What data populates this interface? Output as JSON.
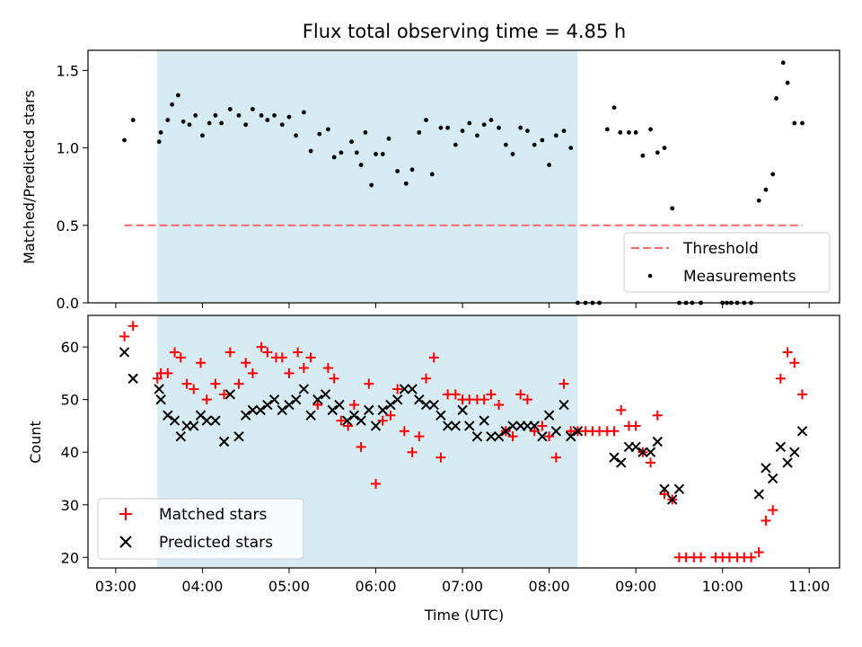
{
  "title": "Flux total observing time = 4.85 h",
  "colors": {
    "shade": "#add8e6",
    "threshold": "#ff6666",
    "matched": "#ff0000",
    "predicted": "#000000",
    "measurements": "#000000"
  },
  "chart_data": [
    {
      "type": "scatter",
      "ylabel": "Matched/Predicted stars",
      "xlim": [
        2.68,
        11.35
      ],
      "ylim": [
        0.0,
        1.63
      ],
      "y_ticks": [
        0.0,
        0.5,
        1.0,
        1.5
      ],
      "y_tick_labels": [
        "0.0",
        "0.5",
        "1.0",
        "1.5"
      ],
      "grid": false,
      "shaded_span": [
        3.48,
        8.33
      ],
      "legend": {
        "placement": "lower right",
        "entries": [
          "Threshold",
          "Measurements"
        ]
      },
      "series": [
        {
          "name": "Threshold",
          "kind": "dashed-line",
          "x": [
            3.1,
            10.92
          ],
          "y": [
            0.5,
            0.5
          ]
        },
        {
          "name": "Measurements",
          "kind": "dot",
          "x": [
            3.1,
            3.2,
            3.5,
            3.52,
            3.6,
            3.65,
            3.72,
            3.78,
            3.85,
            3.92,
            4.0,
            4.08,
            4.15,
            4.22,
            4.32,
            4.42,
            4.5,
            4.58,
            4.68,
            4.75,
            4.83,
            4.92,
            5.0,
            5.08,
            5.17,
            5.25,
            5.35,
            5.45,
            5.52,
            5.6,
            5.72,
            5.78,
            5.83,
            5.88,
            5.95,
            6.0,
            6.08,
            6.15,
            6.25,
            6.35,
            6.42,
            6.5,
            6.58,
            6.65,
            6.75,
            6.83,
            6.92,
            7.0,
            7.08,
            7.17,
            7.25,
            7.33,
            7.42,
            7.5,
            7.58,
            7.67,
            7.75,
            7.83,
            7.92,
            8.0,
            8.08,
            8.17,
            8.25,
            8.33,
            8.42,
            8.5,
            8.58,
            8.67,
            8.75,
            8.82,
            8.92,
            9.0,
            9.08,
            9.17,
            9.25,
            9.33,
            9.42,
            9.5,
            9.58,
            9.65,
            9.75,
            10.0,
            10.05,
            10.1,
            10.17,
            10.25,
            10.33,
            10.42,
            10.5,
            10.58,
            10.62,
            10.7,
            10.75,
            10.83,
            10.92
          ],
          "y": [
            1.05,
            1.18,
            1.04,
            1.1,
            1.18,
            1.28,
            1.34,
            1.17,
            1.15,
            1.21,
            1.08,
            1.16,
            1.21,
            1.16,
            1.25,
            1.21,
            1.15,
            1.25,
            1.21,
            1.18,
            1.21,
            1.15,
            1.2,
            1.08,
            1.23,
            0.98,
            1.09,
            1.12,
            0.94,
            0.97,
            1.04,
            0.97,
            0.89,
            1.1,
            0.76,
            0.96,
            0.96,
            1.06,
            0.85,
            0.77,
            0.86,
            1.1,
            1.18,
            0.83,
            1.13,
            1.13,
            1.02,
            1.11,
            1.16,
            1.08,
            1.15,
            1.18,
            1.13,
            1.02,
            0.96,
            1.13,
            1.11,
            1.02,
            1.05,
            0.89,
            1.08,
            1.11,
            1.0,
            0.0,
            0.0,
            0.0,
            0.0,
            1.12,
            1.26,
            1.1,
            1.1,
            1.1,
            0.95,
            1.12,
            0.97,
            1.0,
            0.61,
            0.0,
            0.0,
            0.0,
            0.0,
            0.0,
            0.0,
            0.0,
            0.0,
            0.0,
            0.0,
            0.66,
            0.73,
            0.83,
            1.32,
            1.55,
            1.42,
            1.16,
            1.16
          ]
        }
      ]
    },
    {
      "type": "scatter",
      "ylabel": "Count",
      "xlabel": "Time (UTC)",
      "xlim": [
        2.68,
        11.35
      ],
      "ylim": [
        18,
        66
      ],
      "y_ticks": [
        20,
        30,
        40,
        50,
        60
      ],
      "y_tick_labels": [
        "20",
        "30",
        "40",
        "50",
        "60"
      ],
      "x_ticks": [
        3,
        4,
        5,
        6,
        7,
        8,
        9,
        10,
        11
      ],
      "x_tick_labels": [
        "03:00",
        "04:00",
        "05:00",
        "06:00",
        "07:00",
        "08:00",
        "09:00",
        "10:00",
        "11:00"
      ],
      "grid": false,
      "shaded_span": [
        3.48,
        8.33
      ],
      "legend": {
        "placement": "lower left",
        "entries": [
          "Matched stars",
          "Predicted stars"
        ]
      },
      "series": [
        {
          "name": "Matched stars",
          "kind": "plus",
          "x": [
            3.1,
            3.2,
            3.48,
            3.52,
            3.6,
            3.68,
            3.75,
            3.82,
            3.9,
            3.98,
            4.05,
            4.15,
            4.25,
            4.32,
            4.42,
            4.5,
            4.58,
            4.68,
            4.75,
            4.85,
            4.92,
            5.0,
            5.1,
            5.17,
            5.25,
            5.33,
            5.45,
            5.52,
            5.6,
            5.68,
            5.75,
            5.83,
            5.92,
            6.0,
            6.08,
            6.17,
            6.25,
            6.33,
            6.42,
            6.5,
            6.58,
            6.67,
            6.75,
            6.83,
            6.92,
            7.0,
            7.08,
            7.17,
            7.25,
            7.33,
            7.42,
            7.5,
            7.58,
            7.67,
            7.75,
            7.83,
            7.92,
            8.0,
            8.08,
            8.17,
            8.25,
            8.33,
            8.42,
            8.5,
            8.58,
            8.67,
            8.75,
            8.83,
            8.92,
            9.0,
            9.08,
            9.17,
            9.25,
            9.33,
            9.42,
            9.5,
            9.58,
            9.67,
            9.75,
            9.92,
            10.0,
            10.08,
            10.17,
            10.25,
            10.33,
            10.42,
            10.5,
            10.58,
            10.67,
            10.75,
            10.83,
            10.92
          ],
          "y": [
            62,
            64,
            54,
            55,
            55,
            59,
            58,
            53,
            52,
            57,
            50,
            53,
            51,
            59,
            53,
            57,
            55,
            60,
            59,
            58,
            58,
            55,
            59,
            56,
            58,
            49,
            56,
            54,
            46,
            45,
            49,
            41,
            53,
            34,
            46,
            47,
            52,
            44,
            40,
            43,
            54,
            58,
            39,
            51,
            51,
            50,
            50,
            50,
            50,
            51,
            49,
            44,
            43,
            51,
            50,
            44,
            45,
            43,
            39,
            53,
            44,
            44,
            44,
            44,
            44,
            44,
            44,
            48,
            45,
            45,
            40,
            38,
            47,
            32,
            31,
            20,
            20,
            20,
            20,
            20,
            20,
            20,
            20,
            20,
            20,
            21,
            27,
            29,
            54,
            59,
            57,
            51
          ]
        },
        {
          "name": "Predicted stars",
          "kind": "x",
          "x": [
            3.1,
            3.2,
            3.5,
            3.52,
            3.6,
            3.68,
            3.75,
            3.82,
            3.9,
            3.98,
            4.05,
            4.15,
            4.25,
            4.32,
            4.42,
            4.5,
            4.58,
            4.67,
            4.75,
            4.83,
            4.92,
            5.0,
            5.08,
            5.17,
            5.25,
            5.33,
            5.42,
            5.5,
            5.58,
            5.67,
            5.75,
            5.83,
            5.92,
            6.0,
            6.08,
            6.17,
            6.25,
            6.33,
            6.42,
            6.5,
            6.58,
            6.67,
            6.75,
            6.83,
            6.92,
            7.0,
            7.08,
            7.17,
            7.25,
            7.33,
            7.42,
            7.5,
            7.58,
            7.67,
            7.75,
            7.83,
            7.92,
            8.0,
            8.08,
            8.17,
            8.25,
            8.33,
            8.75,
            8.83,
            8.92,
            9.0,
            9.08,
            9.17,
            9.25,
            9.33,
            9.42,
            9.5,
            10.42,
            10.5,
            10.58,
            10.67,
            10.75,
            10.83,
            10.92
          ],
          "y": [
            59,
            54,
            52,
            50,
            47,
            46,
            43,
            45,
            45,
            47,
            46,
            46,
            42,
            51,
            43,
            47,
            48,
            48,
            49,
            50,
            48,
            49,
            50,
            52,
            47,
            50,
            51,
            48,
            49,
            46,
            47,
            46,
            48,
            45,
            48,
            49,
            50,
            52,
            52,
            50,
            49,
            49,
            47,
            45,
            45,
            48,
            45,
            43,
            46,
            43,
            43,
            44,
            45,
            45,
            45,
            45,
            43,
            47,
            44,
            49,
            43,
            44,
            39,
            38,
            41,
            41,
            40,
            40,
            42,
            33,
            31,
            33,
            32,
            37,
            35,
            41,
            38,
            40,
            44
          ]
        }
      ]
    }
  ]
}
